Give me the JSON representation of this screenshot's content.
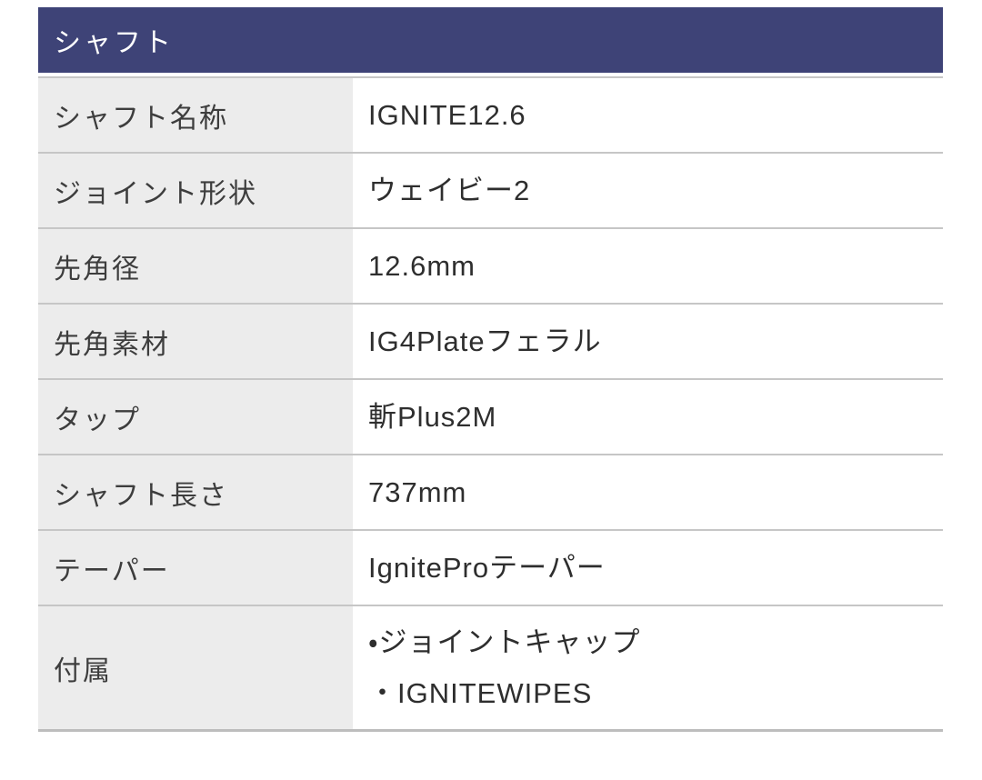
{
  "section": {
    "title": "シャフト"
  },
  "colors": {
    "header_bg": "#3e4377",
    "header_text": "#ffffff",
    "label_bg": "#ececec",
    "value_bg": "#ffffff",
    "border": "#c6c6c6",
    "border_bottom": "#bdbdbd",
    "label_text": "#3d3d3d",
    "value_text": "#2e2e2e"
  },
  "table": {
    "rows": [
      {
        "label": "シャフト名称",
        "values": [
          "IGNITE12.6"
        ]
      },
      {
        "label": "ジョイント形状",
        "values": [
          "ウェイビー2"
        ]
      },
      {
        "label": "先角径",
        "values": [
          "12.6mm"
        ]
      },
      {
        "label": "先角素材",
        "values": [
          "IG4Plateフェラル"
        ]
      },
      {
        "label": "タップ",
        "values": [
          "斬Plus2M"
        ]
      },
      {
        "label": "シャフト長さ",
        "values": [
          "737mm"
        ]
      },
      {
        "label": "テーパー",
        "values": [
          "IgniteProテーパー"
        ]
      },
      {
        "label": "付属",
        "values": [
          "・ジョイントキャップ",
          "・IGNITEWIPES"
        ]
      }
    ]
  }
}
